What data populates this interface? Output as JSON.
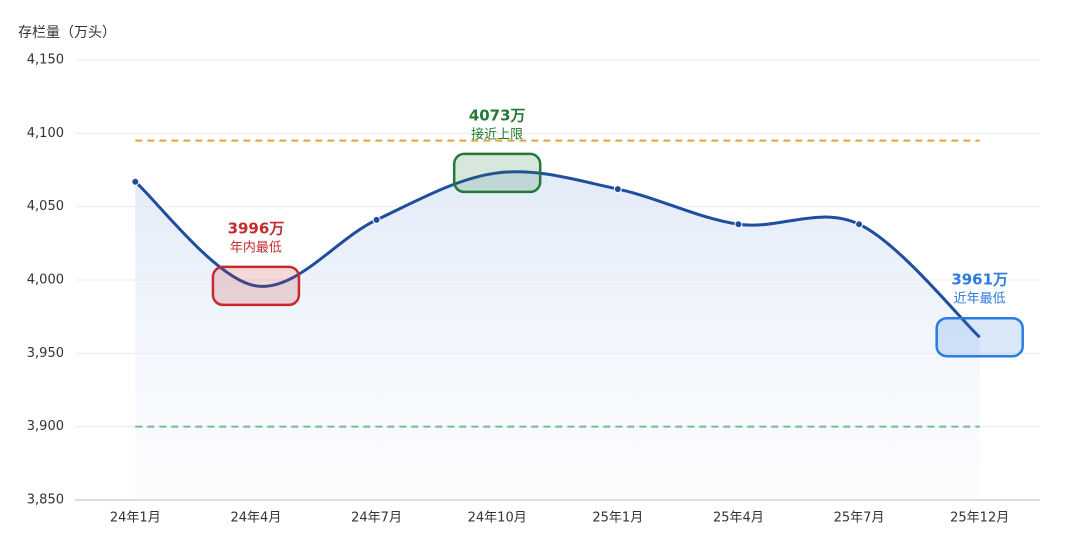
{
  "chart_data": {
    "type": "line",
    "y_axis_label": "存栏量（万头）",
    "categories": [
      "24年1月",
      "24年4月",
      "24年7月",
      "24年10月",
      "25年1月",
      "25年4月",
      "25年7月",
      "25年12月"
    ],
    "series": [
      {
        "color": "#1f4e9e",
        "values": [
          4067,
          3996,
          4041,
          4073,
          4062,
          4038,
          4038,
          3961
        ],
        "value_labels": [
          null,
          "3996万",
          null,
          "4073万",
          null,
          null,
          null,
          "3961万"
        ],
        "annotations": [
          null,
          "年内最低",
          null,
          "接近上限",
          null,
          null,
          null,
          "近年最低"
        ],
        "label_colors": [
          null,
          "#c62a2f",
          null,
          "#237a36",
          null,
          null,
          null,
          "#2b7be0"
        ]
      }
    ],
    "reference_lines": [
      {
        "value": 4095,
        "color": "#e3a634"
      },
      {
        "value": 3900,
        "color": "#3d9b5c"
      }
    ],
    "ylim": [
      3850,
      4150
    ],
    "yticks": [
      {
        "value": 3850,
        "label": "3,850"
      },
      {
        "value": 3900,
        "label": "3,900"
      },
      {
        "value": 3950,
        "label": "3,950"
      },
      {
        "value": 4000,
        "label": "4,000"
      },
      {
        "value": 4050,
        "label": "4,050"
      },
      {
        "value": 4100,
        "label": "4,100"
      },
      {
        "value": 4150,
        "label": "4,150"
      }
    ],
    "grid": true
  }
}
